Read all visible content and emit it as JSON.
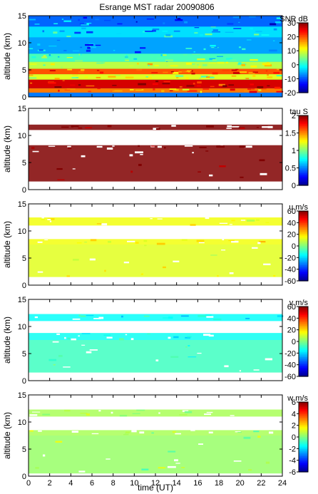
{
  "chart_data": {
    "type": "heatmap",
    "title": "Esrange MST radar 20090806",
    "xlabel": "time (UT)",
    "x_ticks": [
      "0",
      "2",
      "4",
      "6",
      "8",
      "10",
      "12",
      "14",
      "16",
      "18",
      "20",
      "22",
      "24"
    ],
    "xlim": [
      0,
      24
    ],
    "panels": [
      {
        "name": "snr",
        "ylabel": "altitude (km)",
        "ylim": [
          0,
          15
        ],
        "y_ticks": [
          "0",
          "5",
          "10",
          "15"
        ],
        "colorbar_label": "SNR dB",
        "colorbar_ticks": [
          "30",
          "20",
          "10",
          "0",
          "-10",
          "-20"
        ],
        "clim": [
          -20,
          30
        ],
        "layers": [
          {
            "alt": [
              0.8,
              1.6
            ],
            "value": 18
          },
          {
            "alt": [
              1.6,
              3.2
            ],
            "value": 26
          },
          {
            "alt": [
              3.2,
              4.2
            ],
            "value": 10
          },
          {
            "alt": [
              4.2,
              5.2
            ],
            "value": 20
          },
          {
            "alt": [
              5.2,
              6.5
            ],
            "value": 8
          },
          {
            "alt": [
              6.5,
              8.0
            ],
            "value": 2
          },
          {
            "alt": [
              8.0,
              11.0
            ],
            "value": -6
          },
          {
            "alt": [
              11.0,
              13.0
            ],
            "value": -3
          },
          {
            "alt": [
              13.0,
              15.0
            ],
            "value": -9
          }
        ]
      },
      {
        "name": "tau",
        "ylabel": "altitude (km)",
        "ylim": [
          0,
          15
        ],
        "y_ticks": [
          "0",
          "5",
          "10",
          "15"
        ],
        "colorbar_label": "tau S",
        "colorbar_ticks": [
          "2",
          "1.5",
          "1",
          "0.5",
          "0"
        ],
        "clim": [
          0,
          2
        ],
        "layers": [
          {
            "alt": [
              1.5,
              7.5
            ],
            "value": 2.0
          },
          {
            "alt": [
              7.5,
              8.2
            ],
            "value": 2.0
          },
          {
            "alt": [
              11.0,
              12.0
            ],
            "value": 2.0
          }
        ]
      },
      {
        "name": "u",
        "ylabel": "altitude (km)",
        "ylim": [
          0,
          15
        ],
        "y_ticks": [
          "0",
          "5",
          "10",
          "15"
        ],
        "colorbar_label": "u m/s",
        "colorbar_ticks": [
          "60",
          "40",
          "20",
          "0",
          "-20",
          "-40",
          "-60"
        ],
        "clim": [
          -60,
          60
        ],
        "layers": [
          {
            "alt": [
              1.5,
              7.5
            ],
            "value": 12
          },
          {
            "alt": [
              7.5,
              8.5
            ],
            "value": 14
          },
          {
            "alt": [
              11.0,
              12.5
            ],
            "value": 14
          }
        ]
      },
      {
        "name": "v",
        "ylabel": "altitude (km)",
        "ylim": [
          0,
          15
        ],
        "y_ticks": [
          "0",
          "5",
          "10",
          "15"
        ],
        "colorbar_label": "v m/s",
        "colorbar_ticks": [
          "60",
          "40",
          "20",
          "0",
          "-20",
          "-40",
          "-60"
        ],
        "clim": [
          -60,
          60
        ],
        "layers": [
          {
            "alt": [
              1.5,
              7.5
            ],
            "value": -8
          },
          {
            "alt": [
              7.5,
              8.8
            ],
            "value": -14
          },
          {
            "alt": [
              11.0,
              12.3
            ],
            "value": -15
          }
        ]
      },
      {
        "name": "w",
        "ylabel": "altitude (km)",
        "ylim": [
          0,
          15
        ],
        "y_ticks": [
          "0",
          "5",
          "10",
          "15"
        ],
        "colorbar_label": "w m/s",
        "colorbar_ticks": [
          "6",
          "4",
          "2",
          "0",
          "-2",
          "-4",
          "-6"
        ],
        "clim": [
          -6,
          6
        ],
        "layers": [
          {
            "alt": [
              0.5,
              7.5
            ],
            "value": 0.3
          },
          {
            "alt": [
              7.5,
              8.5
            ],
            "value": 0.5
          },
          {
            "alt": [
              11.0,
              12.3
            ],
            "value": 0.5
          }
        ]
      }
    ]
  }
}
